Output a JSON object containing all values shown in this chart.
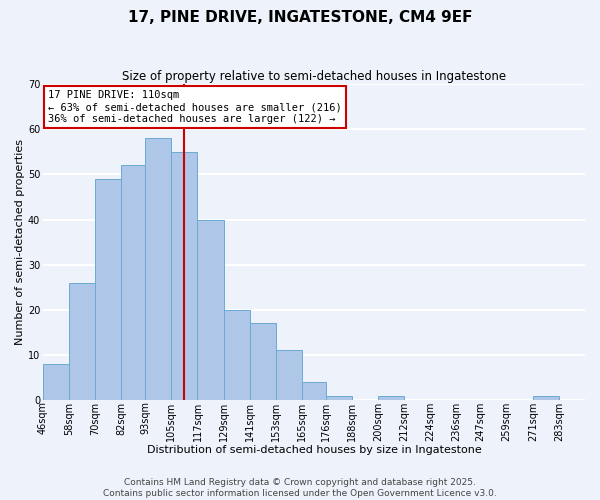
{
  "title": "17, PINE DRIVE, INGATESTONE, CM4 9EF",
  "subtitle": "Size of property relative to semi-detached houses in Ingatestone",
  "xlabel": "Distribution of semi-detached houses by size in Ingatestone",
  "ylabel": "Number of semi-detached properties",
  "bin_labels": [
    "46sqm",
    "58sqm",
    "70sqm",
    "82sqm",
    "93sqm",
    "105sqm",
    "117sqm",
    "129sqm",
    "141sqm",
    "153sqm",
    "165sqm",
    "176sqm",
    "188sqm",
    "200sqm",
    "212sqm",
    "224sqm",
    "236sqm",
    "247sqm",
    "259sqm",
    "271sqm",
    "283sqm"
  ],
  "bin_edges": [
    46,
    58,
    70,
    82,
    93,
    105,
    117,
    129,
    141,
    153,
    165,
    176,
    188,
    200,
    212,
    224,
    236,
    247,
    259,
    271,
    283,
    295
  ],
  "bar_heights": [
    8,
    26,
    49,
    52,
    58,
    55,
    40,
    20,
    17,
    11,
    4,
    1,
    0,
    1,
    0,
    0,
    0,
    0,
    0,
    1,
    0
  ],
  "bar_color": "#aec6e8",
  "bar_edge_color": "#6aaad4",
  "vline_x": 111,
  "vline_color": "#cc0000",
  "annotation_box_text": "17 PINE DRIVE: 110sqm\n← 63% of semi-detached houses are smaller (216)\n36% of semi-detached houses are larger (122) →",
  "annotation_box_facecolor": "white",
  "annotation_box_edgecolor": "#cc0000",
  "ylim": [
    0,
    70
  ],
  "yticks": [
    0,
    10,
    20,
    30,
    40,
    50,
    60,
    70
  ],
  "footnote": "Contains HM Land Registry data © Crown copyright and database right 2025.\nContains public sector information licensed under the Open Government Licence v3.0.",
  "background_color": "#eef2fa",
  "grid_color": "white",
  "title_fontsize": 11,
  "subtitle_fontsize": 8.5,
  "axis_label_fontsize": 8,
  "tick_fontsize": 7,
  "footnote_fontsize": 6.5,
  "annotation_fontsize": 7.5
}
